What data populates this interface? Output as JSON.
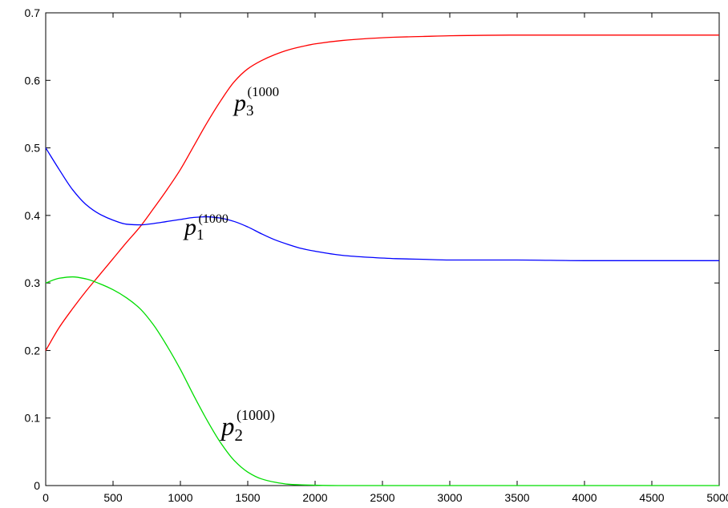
{
  "chart_data": {
    "type": "line",
    "title": "",
    "xlabel": "",
    "ylabel": "",
    "xlim": [
      0,
      5000
    ],
    "ylim": [
      0,
      0.7
    ],
    "x_ticks": [
      "0",
      "500",
      "1000",
      "1500",
      "2000",
      "2500",
      "3000",
      "3500",
      "4000",
      "4500",
      "5000"
    ],
    "y_ticks": [
      "0",
      "0.1",
      "0.2",
      "0.3",
      "0.4",
      "0.5",
      "0.6",
      "0.7"
    ],
    "grid": false,
    "series": [
      {
        "key": "p3",
        "color": "#ff0000",
        "label": {
          "base": "p",
          "sub": "3",
          "sup": "(1000"
        },
        "x": [
          0,
          100,
          200,
          300,
          400,
          500,
          600,
          700,
          800,
          900,
          1000,
          1100,
          1200,
          1300,
          1400,
          1500,
          1600,
          1700,
          1800,
          1900,
          2000,
          2200,
          2400,
          2600,
          2800,
          3000,
          3500,
          4000,
          4500,
          5000
        ],
        "y": [
          0.2,
          0.234,
          0.262,
          0.288,
          0.312,
          0.336,
          0.36,
          0.383,
          0.41,
          0.438,
          0.468,
          0.503,
          0.538,
          0.57,
          0.598,
          0.617,
          0.629,
          0.638,
          0.645,
          0.65,
          0.654,
          0.659,
          0.662,
          0.664,
          0.665,
          0.666,
          0.667,
          0.667,
          0.667,
          0.667
        ]
      },
      {
        "key": "p1",
        "color": "#0000ff",
        "label": {
          "base": "p",
          "sub": "1",
          "sup": "(1000"
        },
        "x": [
          0,
          100,
          200,
          300,
          400,
          500,
          600,
          700,
          800,
          900,
          1000,
          1100,
          1200,
          1300,
          1400,
          1500,
          1600,
          1700,
          1800,
          1900,
          2000,
          2200,
          2400,
          2600,
          2800,
          3000,
          3500,
          4000,
          4500,
          5000
        ],
        "y": [
          0.5,
          0.468,
          0.438,
          0.416,
          0.402,
          0.393,
          0.387,
          0.386,
          0.388,
          0.391,
          0.394,
          0.397,
          0.398,
          0.396,
          0.391,
          0.383,
          0.373,
          0.364,
          0.357,
          0.351,
          0.347,
          0.341,
          0.338,
          0.336,
          0.335,
          0.334,
          0.334,
          0.333,
          0.333,
          0.333
        ]
      },
      {
        "key": "p2",
        "color": "#00dd00",
        "label": {
          "base": "p",
          "sub": "2",
          "sup": "(1000)"
        },
        "x": [
          0,
          100,
          200,
          300,
          400,
          500,
          600,
          700,
          800,
          900,
          1000,
          1100,
          1200,
          1300,
          1400,
          1500,
          1600,
          1700,
          1800,
          1900,
          2000,
          2200,
          2400,
          2600,
          2800,
          3000,
          3500,
          4000,
          4500,
          5000
        ],
        "y": [
          0.3,
          0.307,
          0.309,
          0.306,
          0.299,
          0.29,
          0.278,
          0.262,
          0.238,
          0.207,
          0.172,
          0.133,
          0.096,
          0.063,
          0.037,
          0.02,
          0.01,
          0.005,
          0.002,
          0.001,
          0.0005,
          0.0,
          0.0,
          0.0,
          0.0,
          0.0,
          0.0,
          0.0,
          0.0,
          0.0
        ]
      }
    ]
  }
}
